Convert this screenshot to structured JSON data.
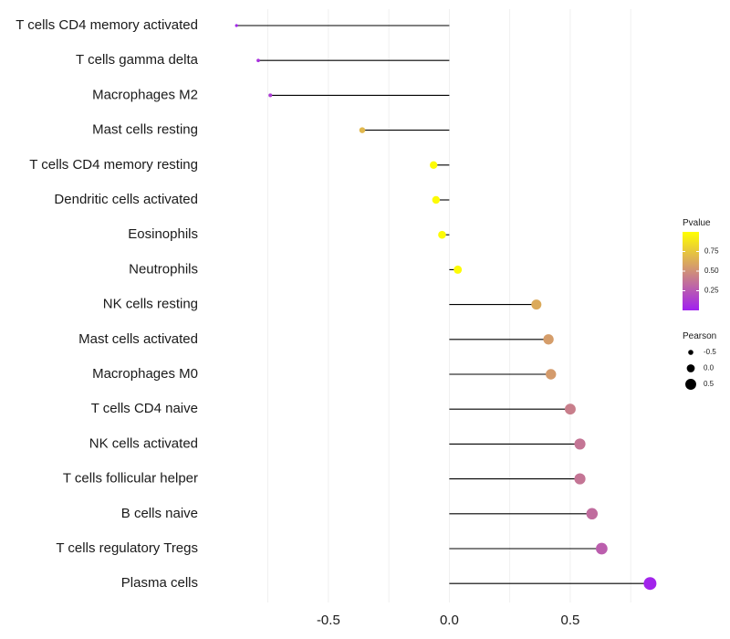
{
  "chart_data": {
    "type": "lollipop",
    "title": "",
    "xlabel": "",
    "ylabel": "",
    "xlim": [
      -0.99,
      0.87
    ],
    "x_ticks": [
      {
        "value": -0.5,
        "label": "-0.5"
      },
      {
        "value": 0.0,
        "label": "0.0"
      },
      {
        "value": 0.5,
        "label": "0.5"
      }
    ],
    "minor_gridlines": [
      -0.75,
      -0.25,
      0.25,
      0.75
    ],
    "categories": [
      "T cells CD4 memory activated",
      "T cells gamma delta",
      "Macrophages M2",
      "Mast cells resting",
      "T cells CD4 memory resting",
      "Dendritic cells activated",
      "Eosinophils",
      "Neutrophils",
      "NK cells resting",
      "Mast cells activated",
      "Macrophages M0",
      "T cells CD4 naive",
      "NK cells activated",
      "T cells follicular helper",
      "B cells naive",
      "T cells regulatory  Tregs",
      "Plasma cells"
    ],
    "series": [
      {
        "name": "Pearson",
        "values": [
          -0.88,
          -0.79,
          -0.74,
          -0.36,
          -0.065,
          -0.055,
          -0.03,
          0.035,
          0.36,
          0.41,
          0.42,
          0.5,
          0.54,
          0.54,
          0.59,
          0.63,
          0.83
        ],
        "pvalues": [
          0.03,
          0.08,
          0.12,
          0.68,
          0.98,
          0.98,
          0.98,
          0.98,
          0.62,
          0.56,
          0.55,
          0.42,
          0.38,
          0.38,
          0.34,
          0.28,
          0.02
        ]
      }
    ],
    "legend": {
      "color": {
        "title": "Pvalue",
        "range": [
          0.0,
          1.0
        ],
        "low_color": "#a020f0",
        "high_color": "#ffff00",
        "ticks": [
          {
            "value": 0.75,
            "label": "0.75"
          },
          {
            "value": 0.5,
            "label": "0.50"
          },
          {
            "value": 0.25,
            "label": "0.25"
          }
        ]
      },
      "size": {
        "title": "Pearson",
        "range": [
          -0.88,
          0.83
        ],
        "entries": [
          {
            "value": -0.5,
            "label": "-0.5"
          },
          {
            "value": 0.0,
            "label": "0.0"
          },
          {
            "value": 0.5,
            "label": "0.5"
          }
        ]
      },
      "position": "right"
    },
    "colors": {
      "stem": "#000000",
      "grid": "#ececec"
    }
  }
}
